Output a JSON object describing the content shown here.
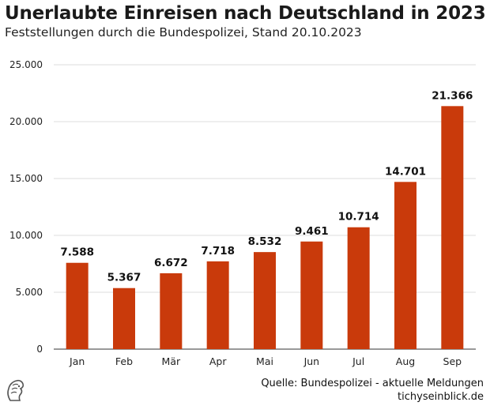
{
  "title": "Unerlaubte Einreisen nach Deutschland in 2023",
  "subtitle": "Feststellungen durch die Bundespolizei, Stand 20.10.2023",
  "source": "Quelle: Bundespolizei - aktuelle Meldungen",
  "site": "tichyseinblick.de",
  "colors": {
    "bar": "#c93a0b",
    "grid": "#dedede",
    "text": "#1a1a1a"
  },
  "chart_data": {
    "type": "bar",
    "title": "Unerlaubte Einreisen nach Deutschland in 2023",
    "subtitle": "Feststellungen durch die Bundespolizei, Stand 20.10.2023",
    "xlabel": "",
    "ylabel": "",
    "categories": [
      "Jan",
      "Feb",
      "Mär",
      "Apr",
      "Mai",
      "Jun",
      "Jul",
      "Aug",
      "Sep"
    ],
    "values": [
      7588,
      5367,
      6672,
      7718,
      8532,
      9461,
      10714,
      14701,
      21366
    ],
    "value_labels": [
      "7.588",
      "5.367",
      "6.672",
      "7.718",
      "8.532",
      "9.461",
      "10.714",
      "14.701",
      "21.366"
    ],
    "ylim": [
      0,
      25000
    ],
    "yticks": [
      0,
      5000,
      10000,
      15000,
      20000,
      25000
    ],
    "ytick_labels": [
      "0",
      "5.000",
      "10.000",
      "15.000",
      "20.000",
      "25.000"
    ],
    "grid": true,
    "legend": "none"
  }
}
